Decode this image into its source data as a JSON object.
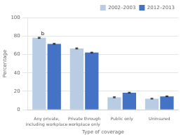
{
  "chart_data": {
    "type": "bar",
    "categories": [
      "Any private,\nincluding workplace",
      "Private through\nworkplace only",
      "Public only",
      "Uninsured"
    ],
    "series": [
      {
        "name": "2002–2003",
        "color": "#b8cce4",
        "values": [
          78.0,
          66.5,
          13.5,
          12.0
        ],
        "errors": [
          0.6,
          0.6,
          0.5,
          0.4
        ]
      },
      {
        "name": "2012–2013",
        "color": "#4472c4",
        "values": [
          71.5,
          62.0,
          18.5,
          14.5
        ],
        "errors": [
          0.5,
          0.5,
          0.5,
          0.4
        ]
      }
    ],
    "xlabel": "Type of coverage",
    "ylabel": "Percentage",
    "ylim": [
      0,
      100
    ],
    "yticks": [
      0,
      20,
      40,
      60,
      80,
      100
    ],
    "grid": true,
    "legend": "upper right",
    "annotations": [
      {
        "text": "b",
        "category": "Any private,\nincluding workplace",
        "series": "2002–2003"
      }
    ]
  }
}
